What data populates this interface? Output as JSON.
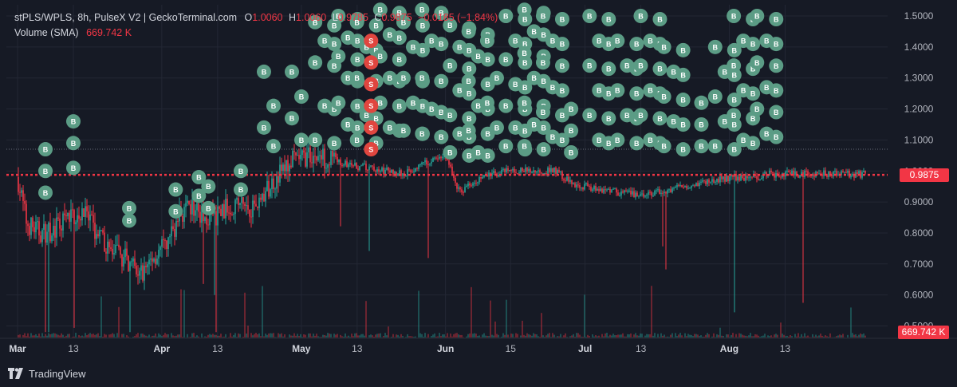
{
  "legend": {
    "symbol": "stPLS/WPLS, 8h, PulseX V2 | GeckoTerminal.com",
    "o_label": "O",
    "o_value": "1.0060",
    "h_label": "H",
    "h_value": "1.0060",
    "l_label": "L",
    "l_value": "0.9785",
    "c_label": "C",
    "c_value": "0.9875",
    "change": "−0.0185 (−1.84%)",
    "volume_label": "Volume (SMA)",
    "volume_value": "669.742 K"
  },
  "branding": {
    "name": "TradingView"
  },
  "colors": {
    "background": "#161a25",
    "up": "#26a69a",
    "down": "#f23645",
    "buy_marker": "#5b9c85",
    "sell_marker": "#e0463f",
    "grid": "#232734"
  },
  "chart_data": {
    "type": "candlestick",
    "title": "",
    "ylim": [
      0.48,
      1.54
    ],
    "y_ticks": [
      "1.5000",
      "1.4000",
      "1.3000",
      "1.2000",
      "1.1000",
      "1.0000",
      "0.9000",
      "0.8000",
      "0.7000",
      "0.6000",
      "0.5000"
    ],
    "x_ticks": [
      "Mar",
      "13",
      "Apr",
      "13",
      "May",
      "13",
      "Jun",
      "15",
      "Jul",
      "13",
      "Aug",
      "13"
    ],
    "last_price": "0.9875",
    "last_volume": "669.742 K",
    "reference_line": 1.07,
    "grid": true,
    "price_path": [
      {
        "date": "Mar 1",
        "price": 0.98
      },
      {
        "date": "Mar 3",
        "price": 0.83
      },
      {
        "date": "Mar 6",
        "price": 0.8
      },
      {
        "date": "Mar 9",
        "price": 0.81
      },
      {
        "date": "Mar 12",
        "price": 0.85
      },
      {
        "date": "Mar 15",
        "price": 0.87
      },
      {
        "date": "Mar 18",
        "price": 0.8
      },
      {
        "date": "Mar 21",
        "price": 0.74
      },
      {
        "date": "Mar 24",
        "price": 0.72
      },
      {
        "date": "Mar 27",
        "price": 0.66
      },
      {
        "date": "Mar 30",
        "price": 0.72
      },
      {
        "date": "Apr 2",
        "price": 0.76
      },
      {
        "date": "Apr 5",
        "price": 0.86
      },
      {
        "date": "Apr 8",
        "price": 0.88
      },
      {
        "date": "Apr 11",
        "price": 0.84
      },
      {
        "date": "Apr 14",
        "price": 0.87
      },
      {
        "date": "Apr 17",
        "price": 0.9
      },
      {
        "date": "Apr 20",
        "price": 0.88
      },
      {
        "date": "Apr 23",
        "price": 0.92
      },
      {
        "date": "Apr 26",
        "price": 0.99
      },
      {
        "date": "Apr 29",
        "price": 1.03
      },
      {
        "date": "May 3",
        "price": 1.05
      },
      {
        "date": "May 7",
        "price": 1.04
      },
      {
        "date": "May 11",
        "price": 1.02
      },
      {
        "date": "May 15",
        "price": 1.01
      },
      {
        "date": "May 19",
        "price": 1.0
      },
      {
        "date": "May 23",
        "price": 0.99
      },
      {
        "date": "May 27",
        "price": 1.02
      },
      {
        "date": "Jun 1",
        "price": 1.05
      },
      {
        "date": "Jun 4",
        "price": 0.93
      },
      {
        "date": "Jun 7",
        "price": 0.97
      },
      {
        "date": "Jun 11",
        "price": 0.99
      },
      {
        "date": "Jun 15",
        "price": 1.0
      },
      {
        "date": "Jun 20",
        "price": 1.0
      },
      {
        "date": "Jun 25",
        "price": 1.0
      },
      {
        "date": "Jun 28",
        "price": 0.96
      },
      {
        "date": "Jul 1",
        "price": 0.95
      },
      {
        "date": "Jul 5",
        "price": 0.94
      },
      {
        "date": "Jul 9",
        "price": 0.93
      },
      {
        "date": "Jul 13",
        "price": 0.92
      },
      {
        "date": "Jul 17",
        "price": 0.93
      },
      {
        "date": "Jul 21",
        "price": 0.95
      },
      {
        "date": "Jul 25",
        "price": 0.96
      },
      {
        "date": "Jul 29",
        "price": 0.97
      },
      {
        "date": "Aug 2",
        "price": 0.98
      },
      {
        "date": "Aug 6",
        "price": 0.98
      },
      {
        "date": "Aug 10",
        "price": 0.99
      }
    ],
    "markers": {
      "buy_label": "B",
      "sell_label": "S",
      "sell_prices": [
        1.42,
        1.35,
        1.28,
        1.21,
        1.14,
        1.07
      ],
      "buy_clusters": [
        {
          "date": "Mar 7",
          "prices": [
            1.07,
            1.0,
            0.93
          ]
        },
        {
          "date": "Mar 13",
          "prices": [
            1.16,
            1.09,
            1.01
          ]
        },
        {
          "date": "Mar 25",
          "prices": [
            0.88,
            0.84
          ]
        },
        {
          "date": "Apr 4",
          "prices": [
            0.94,
            0.87
          ]
        },
        {
          "date": "Apr 10",
          "prices": [
            0.98,
            0.95,
            0.92,
            0.88
          ]
        },
        {
          "date": "Apr 18",
          "prices": [
            1.0,
            0.94
          ]
        },
        {
          "date": "Apr 24",
          "prices": [
            1.32,
            1.21,
            1.14,
            1.08
          ]
        },
        {
          "date": "Apr 30",
          "prices": [
            1.32,
            1.24,
            1.17,
            1.1
          ]
        },
        {
          "date": "May 5",
          "prices": [
            1.48,
            1.42,
            1.35,
            1.21,
            1.1
          ]
        },
        {
          "date": "May 10",
          "prices": [
            1.5,
            1.43,
            1.37,
            1.3,
            1.22,
            1.15
          ]
        },
        {
          "date": "May 14",
          "prices": [
            1.48,
            1.4,
            1.3,
            1.18,
            1.1
          ]
        },
        {
          "date": "May 19",
          "prices": [
            1.52,
            1.44,
            1.37,
            1.3,
            1.22,
            1.14
          ]
        },
        {
          "date": "May 24",
          "prices": [
            1.48,
            1.4,
            1.3,
            1.22,
            1.13
          ]
        },
        {
          "date": "May 28",
          "prices": [
            1.52,
            1.42,
            1.3,
            1.2,
            1.12
          ]
        },
        {
          "date": "Jun 3",
          "prices": [
            1.47,
            1.4,
            1.34,
            1.26,
            1.18,
            1.12,
            1.06
          ]
        },
        {
          "date": "Jun 7",
          "prices": [
            1.45,
            1.37,
            1.29,
            1.21,
            1.13,
            1.06
          ]
        },
        {
          "date": "Jun 11",
          "prices": [
            1.42,
            1.3,
            1.22,
            1.14
          ]
        },
        {
          "date": "Jun 15",
          "prices": [
            1.5,
            1.42,
            1.36,
            1.28,
            1.21,
            1.14,
            1.08
          ]
        },
        {
          "date": "Jun 19",
          "prices": [
            1.52,
            1.45,
            1.38,
            1.3,
            1.22,
            1.15,
            1.08
          ]
        },
        {
          "date": "Jun 23",
          "prices": [
            1.5,
            1.42,
            1.35,
            1.27,
            1.19,
            1.11
          ]
        },
        {
          "date": "Jun 28",
          "prices": [
            1.2,
            1.13,
            1.06
          ]
        },
        {
          "date": "Jul 3",
          "prices": [
            1.5,
            1.42,
            1.34,
            1.26,
            1.18,
            1.1
          ]
        },
        {
          "date": "Jul 9",
          "prices": [
            1.42,
            1.34,
            1.26,
            1.18,
            1.1
          ]
        },
        {
          "date": "Jul 14",
          "prices": [
            1.5,
            1.42,
            1.34,
            1.26,
            1.18,
            1.1
          ]
        },
        {
          "date": "Jul 19",
          "prices": [
            1.4,
            1.32,
            1.24,
            1.16,
            1.08
          ]
        },
        {
          "date": "Jul 26",
          "prices": [
            1.22,
            1.15,
            1.08
          ]
        },
        {
          "date": "Jul 30",
          "prices": [
            1.4,
            1.32,
            1.24,
            1.16,
            1.08
          ]
        },
        {
          "date": "Aug 3",
          "prices": [
            1.5,
            1.42,
            1.34,
            1.26,
            1.18,
            1.1
          ]
        },
        {
          "date": "Aug 8",
          "prices": [
            1.5,
            1.42,
            1.35,
            1.27,
            1.2,
            1.12
          ]
        }
      ]
    }
  }
}
